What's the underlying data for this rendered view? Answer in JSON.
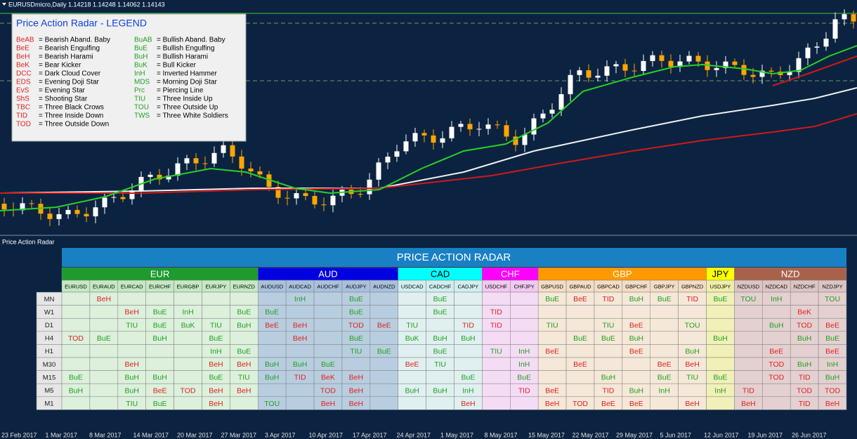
{
  "header": {
    "symbol_info": "EURUSDmicro,Daily  1.14218 1.14248 1.14062 1.14143"
  },
  "legend": {
    "title": "Price Action Radar - LEGEND",
    "bearish_color": "#e02020",
    "bullish_color": "#20a020",
    "bearish": [
      {
        "code": "BeAB",
        "desc": "= Bearish Aband. Baby"
      },
      {
        "code": "BeE",
        "desc": "= Bearish Engulfing"
      },
      {
        "code": "BeH",
        "desc": "= Bearish Harami"
      },
      {
        "code": "BeK",
        "desc": "= Bear Kicker"
      },
      {
        "code": "DCC",
        "desc": "= Dark Cloud Cover"
      },
      {
        "code": "EDS",
        "desc": "= Evening Doji Star"
      },
      {
        "code": "EvS",
        "desc": "= Evening Star"
      },
      {
        "code": "ShS",
        "desc": "= Shooting Star"
      },
      {
        "code": "TBC",
        "desc": "= Three Black Crows"
      },
      {
        "code": "TID",
        "desc": "= Three Inside Down"
      },
      {
        "code": "TOD",
        "desc": "= Three Outside Down"
      }
    ],
    "bullish": [
      {
        "code": "BuAB",
        "desc": "= Bullish Aband. Baby"
      },
      {
        "code": "BuE",
        "desc": "= Bullish Engulfing"
      },
      {
        "code": "BuH",
        "desc": "= Bullish Harami"
      },
      {
        "code": "BuK",
        "desc": "= Bull Kicker"
      },
      {
        "code": "InH",
        "desc": "= Inverted Hammer"
      },
      {
        "code": "MDS",
        "desc": "= Morning Doji Star"
      },
      {
        "code": "Prc",
        "desc": "= Piercing Line"
      },
      {
        "code": "TIU",
        "desc": "= Three Inside Up"
      },
      {
        "code": "TOU",
        "desc": "= Three Outside Up"
      },
      {
        "code": "TWS",
        "desc": "= Three White Soldiers"
      }
    ]
  },
  "dates": [
    "23 Feb 2017",
    "1 Mar 2017",
    "8 Mar 2017",
    "14 Mar 2017",
    "20 Mar 2017",
    "27 Mar 2017",
    "3 Apr 2017",
    "10 Apr 2017",
    "17 Apr 2017",
    "24 Apr 2017",
    "1 May 2017",
    "8 May 2017",
    "15 May 2017",
    "22 May 2017",
    "29 May 2017",
    "5 Jun 2017",
    "12 Jun 2017",
    "19 Jun 2017",
    "26 Jun 2017"
  ],
  "radar": {
    "panel_label": "Price Action Radar",
    "title": "PRICE ACTION RADAR",
    "groups": [
      {
        "name": "EUR",
        "header_color": "#1e9a2e",
        "text_color": "#ffffff",
        "pair_color": "#c4e8c4",
        "cell_color": "#dcf0dc",
        "pairs": [
          "EURUSD",
          "EURAUD",
          "EURCAD",
          "EURCHF",
          "EURGBP",
          "EURJPY",
          "EURNZD"
        ]
      },
      {
        "name": "AUD",
        "header_color": "#0000e0",
        "text_color": "#ffffff",
        "pair_color": "#a8c0dc",
        "cell_color": "#b8cee0",
        "pairs": [
          "AUDUSD",
          "AUDCAD",
          "AUDCHF",
          "AUDJPY",
          "AUDNZD"
        ]
      },
      {
        "name": "CAD",
        "header_color": "#00ffff",
        "text_color": "#000000",
        "pair_color": "#cfeeee",
        "cell_color": "#e0f0f0",
        "pairs": [
          "USDCAD",
          "CADCHF",
          "CADJPY"
        ]
      },
      {
        "name": "CHF",
        "header_color": "#ff00ff",
        "text_color": "#ffffff",
        "pair_color": "#f0c8f0",
        "cell_color": "#f5dcf5",
        "pairs": [
          "USDCHF",
          "CHFJPY"
        ]
      },
      {
        "name": "GBP",
        "header_color": "#ff9900",
        "text_color": "#ffffff",
        "pair_color": "#f2dcc4",
        "cell_color": "#f5e8d8",
        "pairs": [
          "GBPUSD",
          "GBPAUD",
          "GBPCAD",
          "GBPCHF",
          "GBPJPY",
          "GBPNZD"
        ]
      },
      {
        "name": "JPY",
        "header_color": "#ffff00",
        "text_color": "#000000",
        "pair_color": "#eeeeaa",
        "cell_color": "#f0f0b8",
        "pairs": [
          "USDJPY"
        ]
      },
      {
        "name": "NZD",
        "header_color": "#a8624c",
        "text_color": "#ffffff",
        "pair_color": "#dcc4c4",
        "cell_color": "#e4d0d0",
        "pairs": [
          "NZDUSD",
          "NZDCAD",
          "NZDCHF",
          "NZDJPY"
        ]
      }
    ],
    "timeframes": [
      "MN",
      "W1",
      "D1",
      "H4",
      "H1",
      "M30",
      "M15",
      "M5",
      "M1"
    ],
    "rows": [
      [
        null,
        "BeH",
        null,
        null,
        null,
        null,
        null,
        null,
        "InH",
        null,
        "BuE",
        null,
        null,
        "BuE",
        null,
        null,
        null,
        "BuE",
        "BeE",
        "TID",
        "BuH",
        "BuE",
        "TID",
        "BuE",
        "TOU",
        "InH",
        null,
        "TOU"
      ],
      [
        null,
        null,
        "BeH",
        "BuE",
        "InH",
        null,
        "BuE",
        "BuE",
        null,
        null,
        "BuE",
        null,
        null,
        "BuE",
        null,
        "TID",
        null,
        null,
        null,
        null,
        null,
        null,
        null,
        null,
        null,
        null,
        "BeK",
        null
      ],
      [
        null,
        null,
        "TIU",
        "BuE",
        "BuK",
        "TIU",
        "BuH",
        "BeE",
        "BeH",
        null,
        "TOD",
        "BeE",
        "TIU",
        null,
        "TID",
        "TID",
        null,
        "TIU",
        null,
        "TIU",
        "BeE",
        null,
        "TOU",
        null,
        null,
        "BuH",
        "TOD",
        "BeE"
      ],
      [
        "TOD",
        "BuE",
        null,
        "BuH",
        null,
        "BuE",
        null,
        null,
        "BeH",
        null,
        "BuE",
        null,
        "BuK",
        "BuH",
        "BuH",
        null,
        null,
        null,
        "BuE",
        "BuE",
        "BuH",
        null,
        null,
        "BuH",
        null,
        null,
        "BuH",
        "BuE"
      ],
      [
        null,
        null,
        null,
        null,
        null,
        "InH",
        "BuE",
        null,
        null,
        null,
        "TIU",
        "BuE",
        null,
        "BuE",
        null,
        "TIU",
        "InH",
        "BeE",
        null,
        null,
        "BeE",
        null,
        "BuH",
        null,
        null,
        "BeE",
        null,
        "BeE"
      ],
      [
        null,
        null,
        "BeH",
        null,
        null,
        "BeH",
        "BeH",
        "BuH",
        "BuH",
        "BuE",
        null,
        null,
        "BeE",
        "TIU",
        null,
        null,
        "InH",
        null,
        "BeE",
        null,
        null,
        "BeE",
        "BeH",
        null,
        null,
        "TOD",
        "BuH",
        "InH"
      ],
      [
        "BuE",
        null,
        "BuH",
        "BuH",
        null,
        "BuE",
        "TIU",
        "BuH",
        "TID",
        "BeK",
        "BeH",
        null,
        null,
        null,
        "BuE",
        null,
        "BuE",
        null,
        null,
        "BuH",
        null,
        "BuE",
        "TIU",
        "BuE",
        null,
        "TOD",
        "TID",
        "BuH"
      ],
      [
        "BuH",
        null,
        "BuH",
        "BeE",
        "TOD",
        "BeH",
        "BeH",
        null,
        null,
        "TOD",
        "BeH",
        null,
        "BuH",
        "BuH",
        "InH",
        null,
        "TID",
        "BeE",
        null,
        "TID",
        "BuH",
        "InH",
        null,
        "InH",
        "TID",
        null,
        "TOD",
        "TOD"
      ],
      [
        null,
        null,
        "TIU",
        "BuE",
        null,
        "BeH",
        null,
        "TOU",
        null,
        "BeH",
        "BeH",
        null,
        null,
        null,
        "BeH",
        null,
        null,
        "BeH",
        "TOD",
        "BeE",
        "BeE",
        null,
        "BeH",
        null,
        "BeH",
        null,
        "TID",
        "BeH"
      ]
    ]
  }
}
